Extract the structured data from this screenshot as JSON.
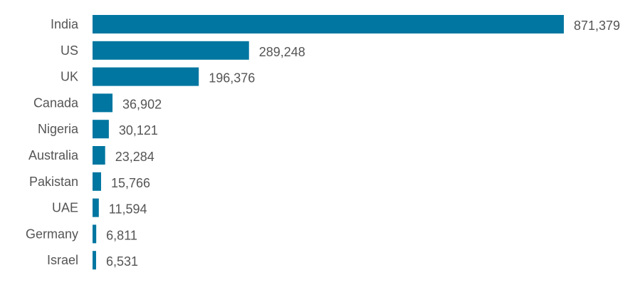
{
  "chart_data": {
    "type": "bar",
    "orientation": "horizontal",
    "title": "",
    "xlabel": "",
    "ylabel": "",
    "categories": [
      "India",
      "US",
      "UK",
      "Canada",
      "Nigeria",
      "Australia",
      "Pakistan",
      "UAE",
      "Germany",
      "Israel"
    ],
    "values": [
      871379,
      289248,
      196376,
      36902,
      30121,
      23284,
      15766,
      11594,
      6811,
      6531
    ],
    "value_labels": [
      "871,379",
      "289,248",
      "196,376",
      "36,902",
      "30,121",
      "23,284",
      "15,766",
      "11,594",
      "6,811",
      "6,531"
    ],
    "xlim": [
      0,
      871379
    ],
    "grid": false,
    "legend": "none",
    "bar_color": "#0076a0",
    "label_color": "#555555"
  }
}
